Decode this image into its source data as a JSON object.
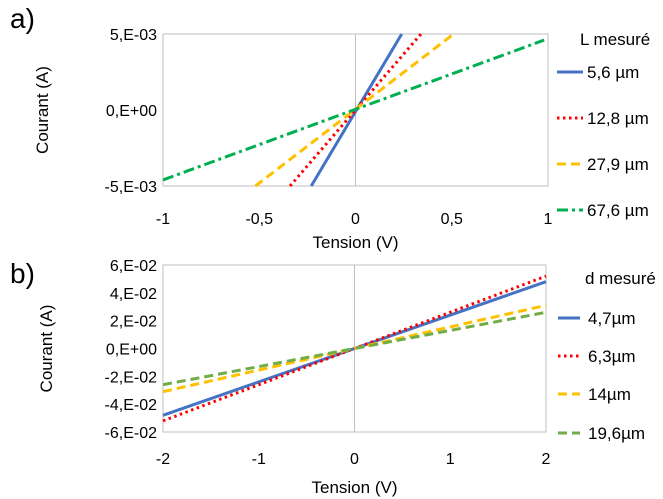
{
  "chart_data": [
    {
      "type": "line",
      "panel_label": "a)",
      "xlabel": "Tension (V)",
      "ylabel": "Courant (A)",
      "xlim": [
        -1,
        1
      ],
      "ylim": [
        -0.005,
        0.005
      ],
      "x_ticks": [
        "-1",
        "-0,5",
        "0",
        "0,5",
        "1"
      ],
      "y_ticks": [
        "5,E-03",
        "0,E+00",
        "-5,E-03"
      ],
      "legend_title": "L mesuré",
      "legend_position": "right",
      "grid": false,
      "series": [
        {
          "name": "5,6 µm",
          "color": "#4472C4",
          "style": "solid",
          "x": [
            -0.23,
            0.24
          ],
          "y": [
            -0.005,
            0.005
          ]
        },
        {
          "name": "12,8 µm",
          "color": "#FF0000",
          "style": "dotted",
          "x": [
            -0.34,
            0.34
          ],
          "y": [
            -0.005,
            0.005
          ]
        },
        {
          "name": "27,9 µm",
          "color": "#FFC000",
          "style": "dashed",
          "x": [
            -0.52,
            0.51
          ],
          "y": [
            -0.005,
            0.005
          ]
        },
        {
          "name": "67,6 µm",
          "color": "#00B050",
          "style": "dashdot",
          "x": [
            -1,
            0.98
          ],
          "y": [
            -0.0046,
            0.0046
          ]
        }
      ]
    },
    {
      "type": "line",
      "panel_label": "b)",
      "xlabel": "Tension (V)",
      "ylabel": "Courant (A)",
      "xlim": [
        -2,
        2
      ],
      "ylim": [
        -0.06,
        0.06
      ],
      "x_ticks": [
        "-2",
        "-1",
        "0",
        "1",
        "2"
      ],
      "y_ticks": [
        "6,E-02",
        "4,E-02",
        "2,E-02",
        "0,E+00",
        "-2,E-02",
        "-4,E-02",
        "-6,E-02"
      ],
      "legend_title": "d mesuré",
      "legend_position": "right",
      "grid": false,
      "series": [
        {
          "name": "4,7µm",
          "color": "#4472C4",
          "style": "solid",
          "x": [
            -2,
            2
          ],
          "y": [
            -0.048,
            0.048
          ]
        },
        {
          "name": "6,3µm",
          "color": "#FF0000",
          "style": "dotted",
          "x": [
            -2,
            2
          ],
          "y": [
            -0.052,
            0.052
          ]
        },
        {
          "name": "14µm",
          "color": "#FFC000",
          "style": "dashed",
          "x": [
            -2,
            2
          ],
          "y": [
            -0.031,
            0.031
          ]
        },
        {
          "name": "19,6µm",
          "color": "#70AD47",
          "style": "dashed",
          "x": [
            -2,
            2
          ],
          "y": [
            -0.026,
            0.026
          ]
        }
      ]
    }
  ]
}
